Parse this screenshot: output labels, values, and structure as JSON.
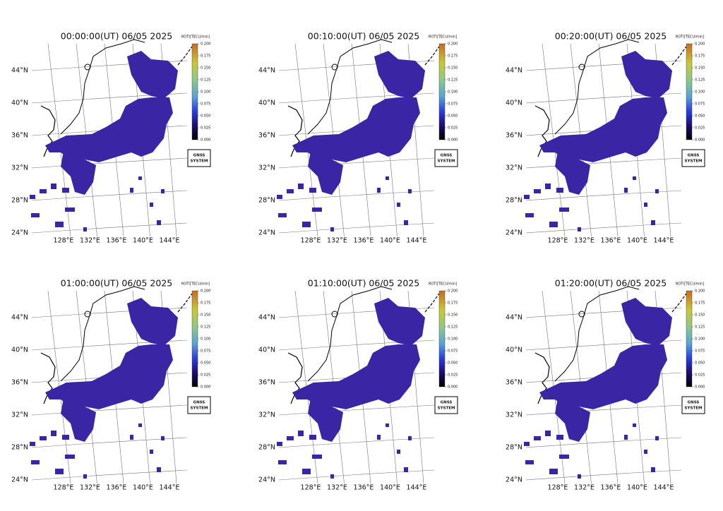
{
  "panels": [
    {
      "title": "00:00:00(UT) 06/05 2025"
    },
    {
      "title": "00:10:00(UT) 06/05 2025"
    },
    {
      "title": "00:20:00(UT) 06/05 2025"
    },
    {
      "title": "01:00:00(UT) 06/05 2025"
    },
    {
      "title": "01:10:00(UT) 06/05 2025"
    },
    {
      "title": "01:20:00(UT) 06/05 2025"
    }
  ],
  "colorbar": {
    "label": "ROTI[TECU/min]",
    "lim": [
      0,
      0.2
    ],
    "ticks": [
      {
        "value": 0,
        "label": "0.000"
      },
      {
        "value": 0.025,
        "label": "0.025"
      },
      {
        "value": 0.05,
        "label": "0.050"
      },
      {
        "value": 0.075,
        "label": "0.075"
      },
      {
        "value": 0.1,
        "label": "0.100"
      },
      {
        "value": 0.125,
        "label": "0.125"
      },
      {
        "value": 0.15,
        "label": "0.150"
      },
      {
        "value": 0.175,
        "label": "0.175"
      },
      {
        "value": 0.2,
        "label": "0.200"
      }
    ]
  },
  "lat_labels": [
    "44°N",
    "40°N",
    "36°N",
    "32°N",
    "28°N",
    "24°N"
  ],
  "lon_labels": [
    "128°E",
    "132°E",
    "136°E",
    "140°E",
    "144°E"
  ],
  "legend_box": [
    "GNSS",
    "SYSTEM"
  ]
}
